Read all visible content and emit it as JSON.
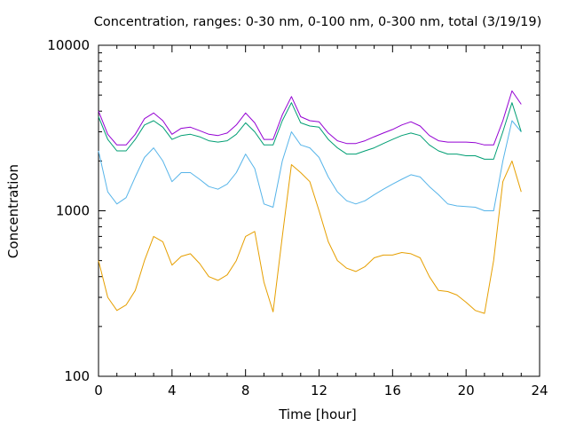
{
  "chart_data": {
    "type": "line",
    "title": "Concentration, ranges: 0-30 nm, 0-100 nm, 0-300 nm, total (3/19/19)",
    "xlabel": "Time [hour]",
    "ylabel": "Concentration",
    "xlim": [
      0,
      24
    ],
    "ylim": [
      100,
      10000
    ],
    "yscale": "log",
    "x_ticks": [
      "0",
      "4",
      "8",
      "12",
      "16",
      "20",
      "24"
    ],
    "y_ticks": [
      "100",
      "1000",
      "10000"
    ],
    "grid": false,
    "legend": "none",
    "x": [
      0,
      0.5,
      1,
      1.5,
      2,
      2.5,
      3,
      3.5,
      4,
      4.5,
      5,
      5.5,
      6,
      6.5,
      7,
      7.5,
      8,
      8.5,
      9,
      9.5,
      10,
      10.5,
      11,
      11.5,
      12,
      12.5,
      13,
      13.5,
      14,
      14.5,
      15,
      15.5,
      16,
      16.5,
      17,
      17.5,
      18,
      18.5,
      19,
      19.5,
      20,
      20.5,
      21,
      21.5,
      22,
      22.5,
      23,
      23.5,
      24
    ],
    "series": [
      {
        "color": "#e69f00",
        "values": [
          500,
          300,
          250,
          270,
          330,
          500,
          700,
          650,
          470,
          530,
          550,
          480,
          400,
          380,
          410,
          500,
          700,
          750,
          370,
          245,
          700,
          1900,
          1700,
          1500,
          1000,
          650,
          500,
          450,
          430,
          460,
          520,
          540,
          540,
          560,
          550,
          520,
          400,
          330,
          325,
          310,
          280,
          250,
          240,
          500,
          1500,
          2000,
          1300,
          0,
          0
        ]
      },
      {
        "color": "#56b4e9",
        "values": [
          2300,
          1300,
          1100,
          1200,
          1600,
          2100,
          2400,
          2000,
          1500,
          1700,
          1700,
          1550,
          1400,
          1350,
          1450,
          1700,
          2200,
          1800,
          1100,
          1050,
          2000,
          3000,
          2500,
          2400,
          2100,
          1600,
          1300,
          1150,
          1100,
          1150,
          1250,
          1350,
          1450,
          1550,
          1650,
          1600,
          1400,
          1250,
          1100,
          1070,
          1060,
          1050,
          1000,
          1000,
          2000,
          3500,
          3000,
          0,
          0
        ]
      },
      {
        "color": "#009e73",
        "values": [
          3700,
          2700,
          2300,
          2300,
          2700,
          3300,
          3500,
          3200,
          2700,
          2850,
          2900,
          2800,
          2650,
          2600,
          2650,
          2900,
          3400,
          3000,
          2500,
          2500,
          3500,
          4500,
          3400,
          3250,
          3200,
          2700,
          2400,
          2200,
          2200,
          2300,
          2400,
          2550,
          2700,
          2850,
          2950,
          2850,
          2500,
          2300,
          2200,
          2200,
          2150,
          2150,
          2050,
          2050,
          3000,
          4500,
          3000,
          0,
          0
        ]
      },
      {
        "color": "#9400d3",
        "values": [
          4000,
          2900,
          2500,
          2500,
          2900,
          3600,
          3900,
          3500,
          2900,
          3150,
          3200,
          3050,
          2900,
          2850,
          2950,
          3300,
          3900,
          3400,
          2700,
          2700,
          3800,
          4900,
          3700,
          3500,
          3450,
          2950,
          2650,
          2550,
          2550,
          2650,
          2800,
          2950,
          3100,
          3300,
          3450,
          3250,
          2850,
          2650,
          2600,
          2600,
          2600,
          2580,
          2500,
          2500,
          3500,
          5300,
          4400,
          0,
          0
        ]
      }
    ]
  }
}
